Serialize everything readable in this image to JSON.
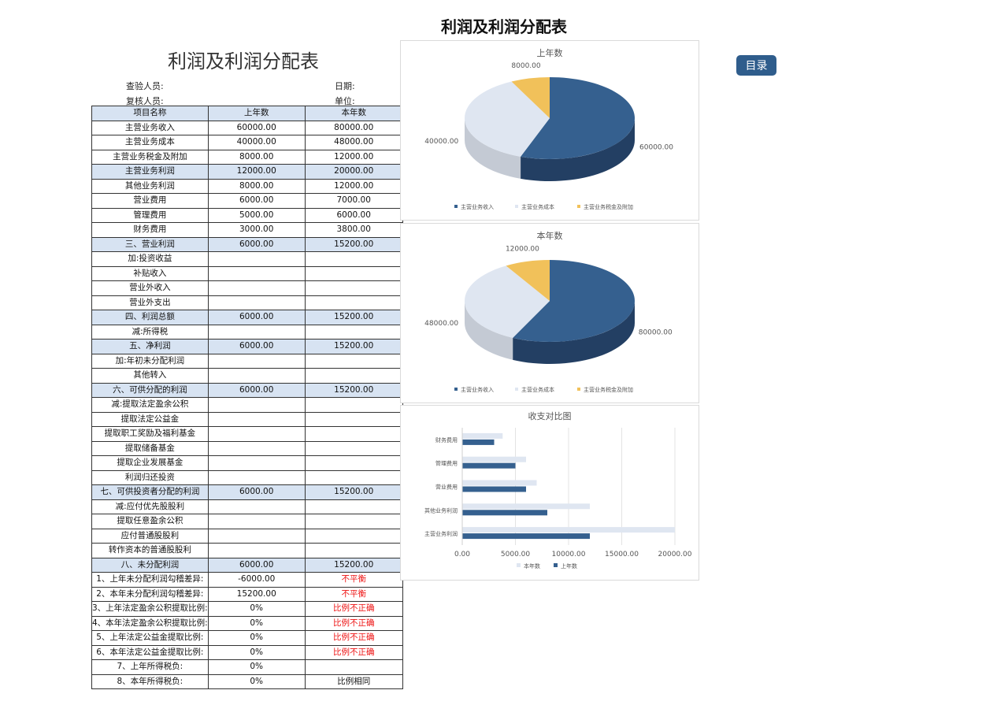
{
  "page_title": "利润及利润分配表",
  "sheet_title": "利润及利润分配表",
  "menu_button": "目录",
  "meta": {
    "checker_label": "查验人员:",
    "date_label": "日期:",
    "reviewer_label": "复核人员:",
    "unit_label": "单位:"
  },
  "table": {
    "headers": [
      "项目名称",
      "上年数",
      "本年数"
    ],
    "rows": [
      {
        "name": "主营业务收入",
        "prev": "60000.00",
        "curr": "80000.00"
      },
      {
        "name": "主营业务成本",
        "prev": "40000.00",
        "curr": "48000.00"
      },
      {
        "name": "主营业务税金及附加",
        "prev": "8000.00",
        "curr": "12000.00"
      },
      {
        "name": "主营业务利润",
        "prev": "12000.00",
        "curr": "20000.00",
        "hl": true
      },
      {
        "name": "其他业务利润",
        "prev": "8000.00",
        "curr": "12000.00"
      },
      {
        "name": "营业费用",
        "prev": "6000.00",
        "curr": "7000.00"
      },
      {
        "name": "管理费用",
        "prev": "5000.00",
        "curr": "6000.00"
      },
      {
        "name": "财务费用",
        "prev": "3000.00",
        "curr": "3800.00"
      },
      {
        "name": "三、营业利润",
        "prev": "6000.00",
        "curr": "15200.00",
        "hl": true
      },
      {
        "name": "加:投资收益",
        "prev": "",
        "curr": ""
      },
      {
        "name": "补贴收入",
        "prev": "",
        "curr": ""
      },
      {
        "name": "营业外收入",
        "prev": "",
        "curr": ""
      },
      {
        "name": "营业外支出",
        "prev": "",
        "curr": ""
      },
      {
        "name": "四、利润总额",
        "prev": "6000.00",
        "curr": "15200.00",
        "hl": true
      },
      {
        "name": "减:所得税",
        "prev": "",
        "curr": ""
      },
      {
        "name": "五、净利润",
        "prev": "6000.00",
        "curr": "15200.00",
        "hl": true
      },
      {
        "name": "加:年初未分配利润",
        "prev": "",
        "curr": ""
      },
      {
        "name": "其他转入",
        "prev": "",
        "curr": ""
      },
      {
        "name": "六、可供分配的利润",
        "prev": "6000.00",
        "curr": "15200.00",
        "hl": true
      },
      {
        "name": "减:提取法定盈余公积",
        "prev": "",
        "curr": ""
      },
      {
        "name": "提取法定公益金",
        "prev": "",
        "curr": ""
      },
      {
        "name": "提取职工奖励及福利基金",
        "prev": "",
        "curr": ""
      },
      {
        "name": "提取储备基金",
        "prev": "",
        "curr": ""
      },
      {
        "name": "提取企业发展基金",
        "prev": "",
        "curr": ""
      },
      {
        "name": "利润归还投资",
        "prev": "",
        "curr": ""
      },
      {
        "name": "七、可供投资者分配的利润",
        "prev": "6000.00",
        "curr": "15200.00",
        "hl": true
      },
      {
        "name": "减:应付优先股股利",
        "prev": "",
        "curr": ""
      },
      {
        "name": "提取任意盈余公积",
        "prev": "",
        "curr": ""
      },
      {
        "name": "应付普通股股利",
        "prev": "",
        "curr": ""
      },
      {
        "name": "转作资本的普通股股利",
        "prev": "",
        "curr": ""
      },
      {
        "name": "八、未分配利润",
        "prev": "6000.00",
        "curr": "15200.00",
        "hl": true
      },
      {
        "name": "1、上年未分配利润勾稽差异:",
        "prev": "-6000.00",
        "curr": "不平衡",
        "red": true
      },
      {
        "name": "2、本年未分配利润勾稽差异:",
        "prev": "15200.00",
        "curr": "不平衡",
        "red": true
      },
      {
        "name": "3、上年法定盈余公积提取比例:",
        "prev": "0%",
        "curr": "比例不正确",
        "red": true
      },
      {
        "name": "4、本年法定盈余公积提取比例:",
        "prev": "0%",
        "curr": "比例不正确",
        "red": true
      },
      {
        "name": "5、上年法定公益金提取比例:",
        "prev": "0%",
        "curr": "比例不正确",
        "red": true
      },
      {
        "name": "6、本年法定公益金提取比例:",
        "prev": "0%",
        "curr": "比例不正确",
        "red": true
      },
      {
        "name": "7、上年所得税负:",
        "prev": "0%",
        "curr": ""
      },
      {
        "name": "8、本年所得税负:",
        "prev": "0%",
        "curr": "比例相同"
      }
    ]
  },
  "colors": {
    "income": "#35608f",
    "income_side": "#233f63",
    "cost": "#dfe6f1",
    "cost_side": "#c4cad4",
    "tax": "#f1c15a",
    "tax_side": "#c99c3c",
    "bar_prev": "#35608f",
    "bar_curr": "#dfe6f1"
  },
  "chart_data": [
    {
      "type": "pie",
      "title": "上年数",
      "categories": [
        "主营业务收入",
        "主营业务成本",
        "主营业务税金及附加"
      ],
      "values": [
        60000,
        40000,
        8000
      ],
      "data_labels": [
        "60000.00",
        "40000.00",
        "8000.00"
      ],
      "legend": "bottom"
    },
    {
      "type": "pie",
      "title": "本年数",
      "categories": [
        "主营业务收入",
        "主营业务成本",
        "主营业务税金及附加"
      ],
      "values": [
        80000,
        48000,
        12000
      ],
      "data_labels": [
        "80000.00",
        "48000.00",
        "12000.00"
      ],
      "legend": "bottom"
    },
    {
      "type": "bar",
      "orientation": "horizontal",
      "title": "收支对比图",
      "categories": [
        "财务费用",
        "管理费用",
        "营业费用",
        "其他业务利润",
        "主营业务利润"
      ],
      "series": [
        {
          "name": "本年数",
          "values": [
            3800,
            6000,
            7000,
            12000,
            20000
          ]
        },
        {
          "name": "上年数",
          "values": [
            3000,
            5000,
            6000,
            8000,
            12000
          ]
        }
      ],
      "xlim": [
        0,
        20000
      ],
      "ticks": [
        "0.00",
        "5000.00",
        "10000.00",
        "15000.00",
        "20000.00"
      ],
      "grid": true,
      "legend": "bottom"
    }
  ]
}
